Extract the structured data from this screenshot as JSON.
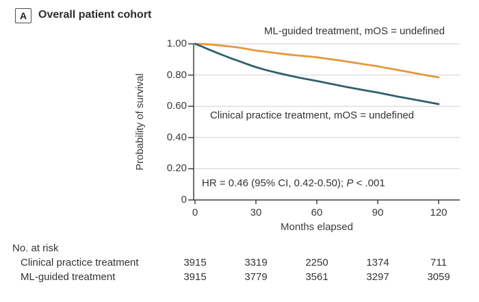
{
  "panel": {
    "label": "A",
    "title": "Overall patient cohort"
  },
  "chart_data": {
    "type": "line",
    "subtype": "kaplan-meier-survival",
    "xlabel": "Months elapsed",
    "ylabel": "Probability of survival",
    "xlim": [
      0,
      120
    ],
    "ylim": [
      0,
      1.0
    ],
    "xticks": [
      0,
      30,
      60,
      90,
      120
    ],
    "yticks": [
      {
        "v": 1.0,
        "label": "1.00"
      },
      {
        "v": 0.8,
        "label": "0.80"
      },
      {
        "v": 0.6,
        "label": "0.60"
      },
      {
        "v": 0.4,
        "label": "0.40"
      },
      {
        "v": 0.2,
        "label": "0.20"
      },
      {
        "v": 0.0,
        "label": "0"
      }
    ],
    "grid": "horizontal",
    "legend_position": "labels-on-plot",
    "series": [
      {
        "name": "ML-guided treatment",
        "label": "ML-guided treatment, mOS = undefined",
        "color": "#E8963C",
        "x": [
          0,
          3,
          6,
          9,
          12,
          15,
          18,
          21,
          24,
          27,
          30,
          35,
          40,
          45,
          50,
          55,
          60,
          65,
          70,
          75,
          80,
          85,
          90,
          95,
          100,
          105,
          110,
          115,
          120
        ],
        "y": [
          1.0,
          0.999,
          0.997,
          0.994,
          0.99,
          0.986,
          0.982,
          0.977,
          0.971,
          0.964,
          0.957,
          0.949,
          0.941,
          0.933,
          0.926,
          0.92,
          0.914,
          0.905,
          0.896,
          0.886,
          0.876,
          0.866,
          0.856,
          0.844,
          0.832,
          0.82,
          0.808,
          0.796,
          0.785
        ]
      },
      {
        "name": "Clinical practice treatment",
        "label": "Clinical practice treatment, mOS = undefined",
        "color": "#2E5F6B",
        "x": [
          0,
          3,
          6,
          9,
          12,
          15,
          18,
          21,
          24,
          27,
          30,
          35,
          40,
          45,
          50,
          55,
          60,
          65,
          70,
          75,
          80,
          85,
          90,
          95,
          100,
          105,
          110,
          115,
          120
        ],
        "y": [
          1.0,
          0.985,
          0.968,
          0.952,
          0.936,
          0.921,
          0.906,
          0.892,
          0.878,
          0.864,
          0.851,
          0.832,
          0.816,
          0.801,
          0.787,
          0.774,
          0.762,
          0.749,
          0.736,
          0.723,
          0.711,
          0.699,
          0.688,
          0.675,
          0.662,
          0.65,
          0.638,
          0.626,
          0.614
        ]
      }
    ],
    "annotation": {
      "hr_text": "HR = 0.46 (95% CI, 0.42-0.50); ",
      "p_italic": "P",
      "p_rest": " < .001"
    }
  },
  "risk_table": {
    "title": "No. at risk",
    "columns": [
      0,
      30,
      60,
      90,
      120
    ],
    "rows": [
      {
        "label": "Clinical practice treatment",
        "values": [
          "3915",
          "3319",
          "2250",
          "1374",
          "711"
        ]
      },
      {
        "label": "ML-guided treatment",
        "values": [
          "3915",
          "3779",
          "3561",
          "3297",
          "3059"
        ]
      }
    ]
  },
  "colors": {
    "ml_curve": "#E8963C",
    "clinical_curve": "#2E5F6B",
    "grid": "#CFCFCF",
    "axis": "#3F3F3F",
    "text": "#333333"
  }
}
